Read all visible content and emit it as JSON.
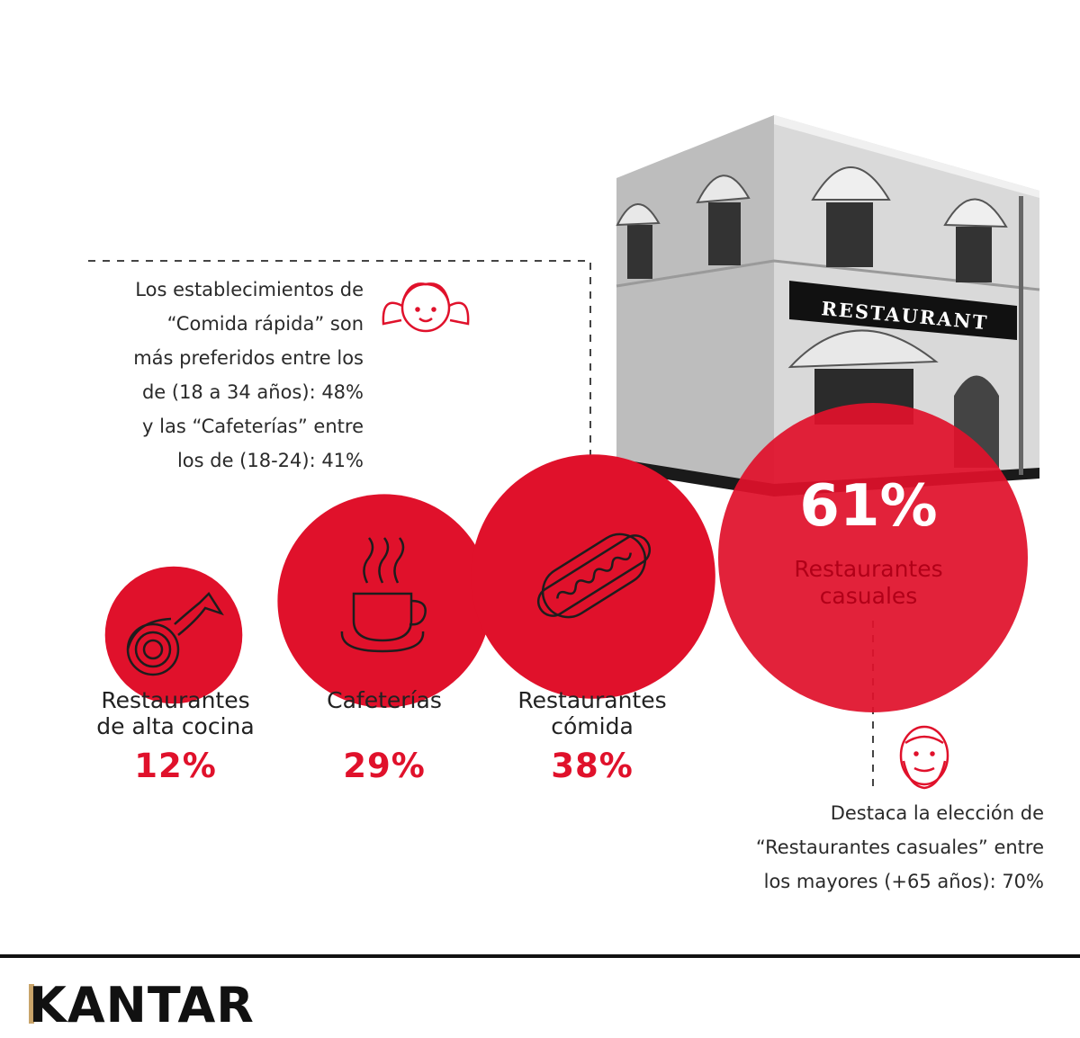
{
  "chart_data": {
    "type": "bubble",
    "categories": [
      "Restaurantes de alta cocina",
      "Cafeterías",
      "Restaurantes cómida",
      "Restaurantes casuales"
    ],
    "values": [
      12,
      29,
      38,
      61
    ],
    "unit": "%",
    "labels": [
      {
        "lines": [
          "Restaurantes",
          "de alta cocina"
        ],
        "value_text": "12%"
      },
      {
        "lines": [
          "Cafeterías"
        ],
        "value_text": "29%"
      },
      {
        "lines": [
          "Restaurantes",
          "cómida"
        ],
        "value_text": "38%"
      },
      {
        "lines": [
          "Restaurantes",
          "casuales"
        ],
        "value_text": "61%"
      }
    ],
    "annotations": [
      {
        "lines": [
          "Los establecimientos de",
          "“Comida rápida” son",
          "más preferidos entre los",
          "de (18 a 34 años): 48%",
          "y las “Cafeterías” entre",
          "los de (18-24): 41%"
        ]
      },
      {
        "lines": [
          "Destaca la elección de",
          "“Restaurantes casuales” entre",
          "los mayores (+65 años): 70%"
        ]
      }
    ],
    "building_sign": "RESTAURANT"
  },
  "colors": {
    "accent": "#e0112b",
    "dark_red": "#b10018",
    "text": "#1d1d1d",
    "gold": "#c9a46a"
  },
  "icons": [
    "fish-icon",
    "coffee-cup-icon",
    "hot-dog-icon",
    "girl-face-icon",
    "old-man-face-icon",
    "restaurant-building-image"
  ],
  "brand": "KANTAR"
}
